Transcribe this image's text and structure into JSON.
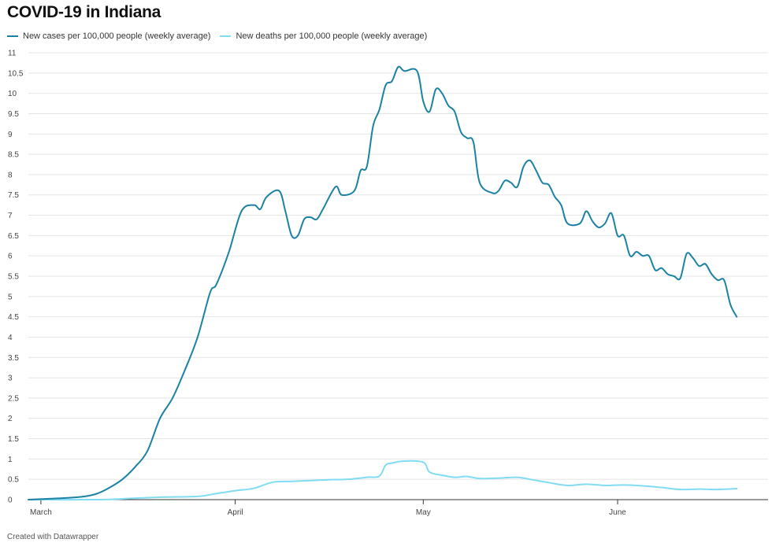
{
  "chart_data": {
    "type": "line",
    "title": "COVID-19 in Indiana",
    "footer": "Created with Datawrapper",
    "ylim": [
      0,
      11
    ],
    "y_ticks": [
      0,
      0.5,
      1,
      1.5,
      2,
      2.5,
      3,
      3.5,
      4,
      4.5,
      5,
      5.5,
      6,
      6.5,
      7,
      7.5,
      8,
      8.5,
      9,
      9.5,
      10,
      10.5,
      11
    ],
    "y_tick_labels": [
      "0",
      "0.5",
      "1",
      "1.5",
      "2",
      "2.5",
      "3",
      "3.5",
      "4",
      "4.5",
      "5",
      "5.5",
      "6",
      "6.5",
      "7",
      "7.5",
      "8",
      "8.5",
      "9",
      "9.5",
      "10",
      "10.5",
      "11"
    ],
    "x_range": [
      "2020-02-28",
      "2020-06-25"
    ],
    "x_ticks": [
      {
        "label": "March",
        "date": "2020-03-01"
      },
      {
        "label": "April",
        "date": "2020-04-01"
      },
      {
        "label": "May",
        "date": "2020-05-01"
      },
      {
        "label": "June",
        "date": "2020-06-01"
      }
    ],
    "legend_position": "top-left",
    "grid": true,
    "series": [
      {
        "name": "New cases per 100,000 people (weekly average)",
        "color": "#1b82a3",
        "points": [
          [
            "2020-02-28",
            0.0
          ],
          [
            "2020-03-02",
            0.02
          ],
          [
            "2020-03-05",
            0.04
          ],
          [
            "2020-03-08",
            0.08
          ],
          [
            "2020-03-10",
            0.15
          ],
          [
            "2020-03-12",
            0.3
          ],
          [
            "2020-03-14",
            0.5
          ],
          [
            "2020-03-16",
            0.8
          ],
          [
            "2020-03-18",
            1.2
          ],
          [
            "2020-03-20",
            2.0
          ],
          [
            "2020-03-22",
            2.5
          ],
          [
            "2020-03-24",
            3.2
          ],
          [
            "2020-03-26",
            4.0
          ],
          [
            "2020-03-28",
            5.1
          ],
          [
            "2020-03-29",
            5.3
          ],
          [
            "2020-03-31",
            6.1
          ],
          [
            "2020-04-02",
            7.1
          ],
          [
            "2020-04-04",
            7.25
          ],
          [
            "2020-04-05",
            7.15
          ],
          [
            "2020-04-06",
            7.45
          ],
          [
            "2020-04-08",
            7.6
          ],
          [
            "2020-04-09",
            7.1
          ],
          [
            "2020-04-10",
            6.5
          ],
          [
            "2020-04-11",
            6.5
          ],
          [
            "2020-04-12",
            6.9
          ],
          [
            "2020-04-13",
            6.95
          ],
          [
            "2020-04-14",
            6.9
          ],
          [
            "2020-04-15",
            7.15
          ],
          [
            "2020-04-17",
            7.7
          ],
          [
            "2020-04-18",
            7.5
          ],
          [
            "2020-04-20",
            7.6
          ],
          [
            "2020-04-21",
            8.1
          ],
          [
            "2020-04-22",
            8.2
          ],
          [
            "2020-04-23",
            9.2
          ],
          [
            "2020-04-24",
            9.6
          ],
          [
            "2020-04-25",
            10.2
          ],
          [
            "2020-04-26",
            10.3
          ],
          [
            "2020-04-27",
            10.65
          ],
          [
            "2020-04-28",
            10.55
          ],
          [
            "2020-04-30",
            10.55
          ],
          [
            "2020-05-01",
            9.8
          ],
          [
            "2020-05-02",
            9.55
          ],
          [
            "2020-05-03",
            10.1
          ],
          [
            "2020-05-04",
            10.0
          ],
          [
            "2020-05-05",
            9.7
          ],
          [
            "2020-05-06",
            9.55
          ],
          [
            "2020-05-07",
            9.05
          ],
          [
            "2020-05-08",
            8.9
          ],
          [
            "2020-05-09",
            8.8
          ],
          [
            "2020-05-10",
            7.8
          ],
          [
            "2020-05-12",
            7.55
          ],
          [
            "2020-05-13",
            7.6
          ],
          [
            "2020-05-14",
            7.85
          ],
          [
            "2020-05-15",
            7.8
          ],
          [
            "2020-05-16",
            7.7
          ],
          [
            "2020-05-17",
            8.2
          ],
          [
            "2020-05-18",
            8.35
          ],
          [
            "2020-05-19",
            8.1
          ],
          [
            "2020-05-20",
            7.8
          ],
          [
            "2020-05-21",
            7.75
          ],
          [
            "2020-05-22",
            7.45
          ],
          [
            "2020-05-23",
            7.25
          ],
          [
            "2020-05-24",
            6.8
          ],
          [
            "2020-05-26",
            6.8
          ],
          [
            "2020-05-27",
            7.1
          ],
          [
            "2020-05-28",
            6.85
          ],
          [
            "2020-05-29",
            6.7
          ],
          [
            "2020-05-30",
            6.8
          ],
          [
            "2020-05-31",
            7.05
          ],
          [
            "2020-06-01",
            6.5
          ],
          [
            "2020-06-02",
            6.5
          ],
          [
            "2020-06-03",
            6.0
          ],
          [
            "2020-06-04",
            6.1
          ],
          [
            "2020-06-05",
            6.0
          ],
          [
            "2020-06-06",
            6.0
          ],
          [
            "2020-06-07",
            5.65
          ],
          [
            "2020-06-08",
            5.7
          ],
          [
            "2020-06-09",
            5.55
          ],
          [
            "2020-06-10",
            5.5
          ],
          [
            "2020-06-11",
            5.45
          ],
          [
            "2020-06-12",
            6.05
          ],
          [
            "2020-06-13",
            5.95
          ],
          [
            "2020-06-14",
            5.75
          ],
          [
            "2020-06-15",
            5.8
          ],
          [
            "2020-06-16",
            5.55
          ],
          [
            "2020-06-17",
            5.4
          ],
          [
            "2020-06-18",
            5.4
          ],
          [
            "2020-06-19",
            4.8
          ],
          [
            "2020-06-20",
            4.5
          ]
        ]
      },
      {
        "name": "New deaths per 100,000 people (weekly average)",
        "color": "#7fdcf2",
        "points": [
          [
            "2020-02-28",
            0.0
          ],
          [
            "2020-03-10",
            0.0
          ],
          [
            "2020-03-14",
            0.02
          ],
          [
            "2020-03-20",
            0.06
          ],
          [
            "2020-03-26",
            0.08
          ],
          [
            "2020-03-29",
            0.15
          ],
          [
            "2020-04-01",
            0.22
          ],
          [
            "2020-04-04",
            0.28
          ],
          [
            "2020-04-07",
            0.43
          ],
          [
            "2020-04-10",
            0.45
          ],
          [
            "2020-04-13",
            0.47
          ],
          [
            "2020-04-16",
            0.49
          ],
          [
            "2020-04-19",
            0.5
          ],
          [
            "2020-04-22",
            0.55
          ],
          [
            "2020-04-24",
            0.58
          ],
          [
            "2020-04-25",
            0.85
          ],
          [
            "2020-04-26",
            0.9
          ],
          [
            "2020-04-28",
            0.95
          ],
          [
            "2020-05-01",
            0.92
          ],
          [
            "2020-05-02",
            0.68
          ],
          [
            "2020-05-04",
            0.6
          ],
          [
            "2020-05-06",
            0.55
          ],
          [
            "2020-05-08",
            0.57
          ],
          [
            "2020-05-10",
            0.52
          ],
          [
            "2020-05-13",
            0.53
          ],
          [
            "2020-05-16",
            0.55
          ],
          [
            "2020-05-18",
            0.5
          ],
          [
            "2020-05-21",
            0.42
          ],
          [
            "2020-05-24",
            0.35
          ],
          [
            "2020-05-27",
            0.38
          ],
          [
            "2020-05-30",
            0.35
          ],
          [
            "2020-06-02",
            0.36
          ],
          [
            "2020-06-05",
            0.34
          ],
          [
            "2020-06-08",
            0.3
          ],
          [
            "2020-06-11",
            0.25
          ],
          [
            "2020-06-14",
            0.26
          ],
          [
            "2020-06-17",
            0.25
          ],
          [
            "2020-06-20",
            0.27
          ]
        ]
      }
    ]
  }
}
